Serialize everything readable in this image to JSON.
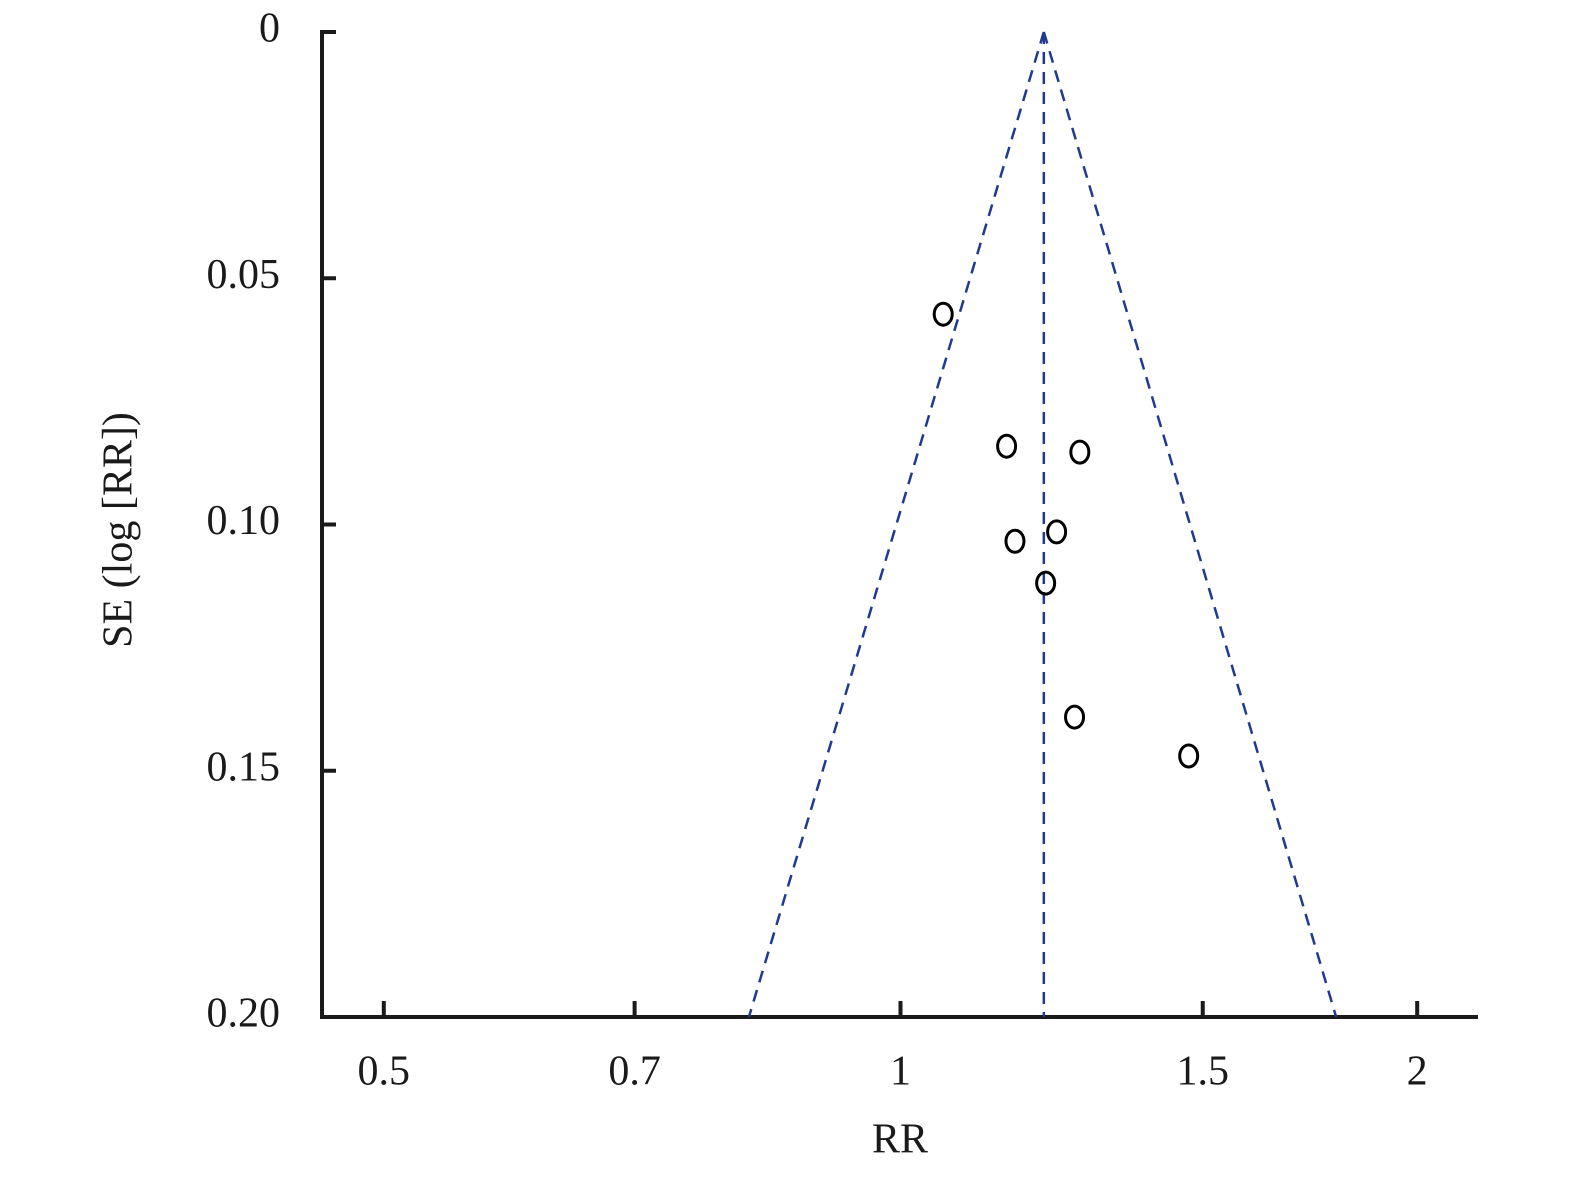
{
  "chart_data": {
    "type": "scatter",
    "x_label": "RR",
    "y_label": "SE (log [RR])",
    "x": [
      1.059,
      1.153,
      1.272,
      1.233,
      1.166,
      1.215,
      1.263,
      1.472
    ],
    "values": [
      0.0573,
      0.0841,
      0.0853,
      0.1015,
      0.1034,
      0.1119,
      0.1391,
      0.147
    ],
    "color": "#000000",
    "x_log_scale": true,
    "y_inverted": true,
    "xlim": [
      0.459,
      2.17
    ],
    "ylim": [
      0,
      0.2
    ],
    "xticks": [
      0.5,
      0.7,
      1,
      1.5,
      2
    ],
    "yticks": [
      0,
      0.05,
      {
        "value": 0.1,
        "label": "0.10"
      },
      0.15,
      {
        "value": 0.2,
        "label": "0.20"
      }
    ],
    "pooled_estimate": 1.212,
    "funnel_bounds": [
      0.816,
      1.794
    ],
    "funnel_color": "#1f3a8f"
  }
}
